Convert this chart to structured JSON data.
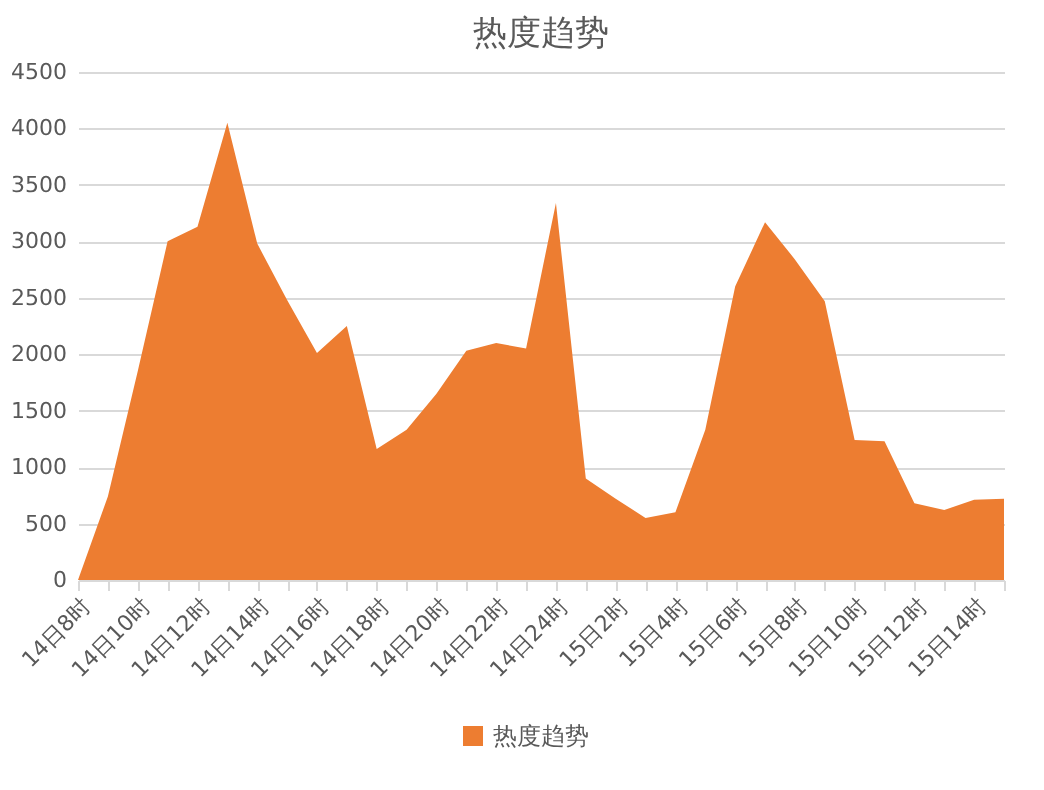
{
  "chart_data": {
    "type": "area",
    "title": "热度趋势",
    "categories": [
      "14日8时",
      null,
      "14日10时",
      null,
      "14日12时",
      null,
      "14日14时",
      null,
      "14日16时",
      null,
      "14日18时",
      null,
      "14日20时",
      null,
      "14日22时",
      null,
      "14日24时",
      null,
      "15日2时",
      null,
      "15日4时",
      null,
      "15日6时",
      null,
      "15日8时",
      null,
      "15日10时",
      null,
      "15日12时",
      null,
      "15日14时",
      null
    ],
    "series": [
      {
        "name": "热度趋势",
        "color": "#ed7d31",
        "values": [
          0,
          740,
          1850,
          3000,
          3130,
          4050,
          2980,
          2480,
          2010,
          2250,
          1160,
          1330,
          1650,
          2030,
          2100,
          2050,
          3340,
          900,
          720,
          550,
          600,
          1330,
          2600,
          3170,
          2840,
          2470,
          1240,
          1230,
          680,
          620,
          710,
          720
        ]
      }
    ],
    "ylim": [
      0,
      4500
    ],
    "yticks": [
      0,
      500,
      1000,
      1500,
      2000,
      2500,
      3000,
      3500,
      4000,
      4500
    ],
    "grid": "y",
    "legend": "bottom"
  }
}
